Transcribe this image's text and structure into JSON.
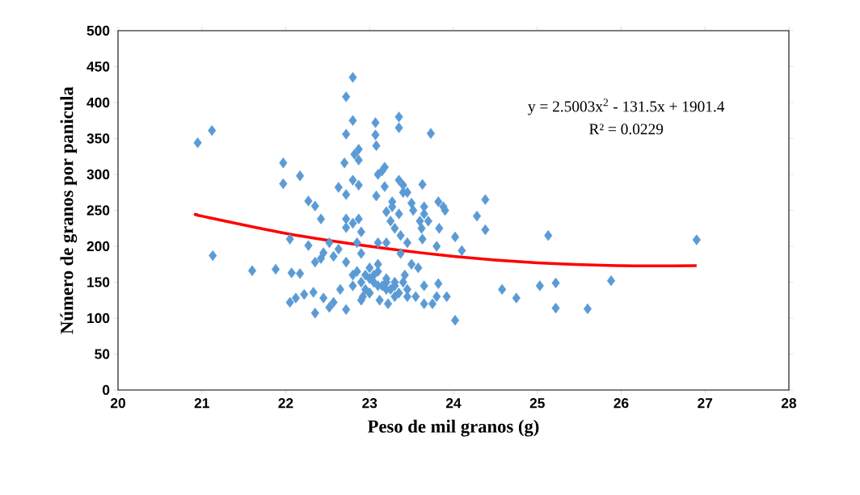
{
  "chart_data": {
    "type": "scatter",
    "xlabel": "Peso de mil granos (g)",
    "ylabel": "Número de granos por panicula",
    "xlim": [
      20,
      28
    ],
    "xticks": [
      20,
      21,
      22,
      23,
      24,
      25,
      26,
      27,
      28
    ],
    "ylim": [
      0,
      500
    ],
    "yticks": [
      0,
      50,
      100,
      150,
      200,
      250,
      300,
      350,
      400,
      450,
      500
    ],
    "marker": "diamond",
    "annotations": [
      "y = 2.5003x$^{2}$ - 131.5x + 1901.4",
      "R² = 0.0229"
    ],
    "series": [
      {
        "color": "#5b9bd5",
        "x": [
          20.95,
          21.12,
          21.13,
          21.6,
          21.88,
          21.97,
          21.97,
          22.05,
          22.07,
          22.05,
          22.12,
          22.17,
          22.17,
          22.22,
          22.27,
          22.27,
          22.35,
          22.33,
          22.35,
          22.35,
          22.42,
          22.42,
          22.45,
          22.45,
          22.52,
          22.52,
          22.57,
          22.57,
          22.63,
          22.63,
          22.65,
          22.7,
          22.72,
          22.72,
          22.72,
          22.72,
          22.72,
          22.72,
          22.72,
          22.8,
          22.8,
          22.8,
          22.82,
          22.8,
          22.8,
          22.8,
          22.85,
          22.87,
          22.87,
          22.87,
          22.87,
          22.9,
          22.9,
          22.9,
          22.92,
          22.95,
          23.0,
          23.0,
          23.0,
          23.05,
          23.07,
          23.07,
          23.08,
          23.08,
          23.1,
          23.1,
          23.1,
          23.1,
          23.12,
          23.15,
          23.18,
          23.18,
          23.2,
          23.2,
          23.2,
          23.2,
          23.22,
          23.25,
          23.27,
          23.27,
          23.3,
          23.3,
          23.3,
          23.35,
          23.35,
          23.35,
          23.35,
          23.37,
          23.37,
          23.4,
          23.4,
          23.42,
          23.45,
          23.45,
          23.45,
          23.5,
          23.5,
          23.52,
          23.55,
          23.58,
          23.6,
          23.62,
          23.63,
          23.65,
          23.65,
          23.63,
          23.65,
          23.65,
          23.7,
          23.73,
          23.75,
          23.8,
          23.8,
          23.82,
          23.82,
          23.83,
          23.88,
          23.9,
          23.92,
          24.02,
          24.02,
          24.1,
          24.28,
          24.38,
          24.38,
          24.58,
          24.75,
          25.03,
          25.13,
          25.22,
          25.22,
          25.6,
          25.88,
          26.9,
          22.85,
          22.95,
          23.05,
          23.15,
          23.25,
          23.35,
          23.45,
          22.9,
          23.0,
          23.1,
          23.2,
          23.3,
          23.4
        ],
        "values": [
          344,
          361,
          187,
          166,
          168,
          316,
          287,
          210,
          163,
          122,
          128,
          298,
          162,
          133,
          201,
          263,
          256,
          136,
          107,
          178,
          238,
          183,
          191,
          128,
          205,
          115,
          122,
          186,
          196,
          282,
          140,
          316,
          408,
          356,
          272,
          238,
          226,
          178,
          112,
          435,
          375,
          292,
          328,
          232,
          160,
          145,
          205,
          335,
          320,
          285,
          238,
          220,
          190,
          150,
          130,
          140,
          170,
          155,
          135,
          160,
          372,
          355,
          340,
          270,
          300,
          205,
          175,
          145,
          125,
          305,
          310,
          283,
          248,
          205,
          150,
          140,
          120,
          235,
          262,
          255,
          225,
          150,
          130,
          380,
          365,
          292,
          245,
          215,
          190,
          285,
          275,
          160,
          275,
          205,
          140,
          175,
          260,
          250,
          130,
          170,
          235,
          225,
          286,
          255,
          245,
          210,
          145,
          120,
          235,
          357,
          120,
          130,
          200,
          262,
          148,
          225,
          255,
          250,
          130,
          97,
          213,
          194,
          242,
          265,
          223,
          140,
          128,
          145,
          215,
          149,
          114,
          113,
          152,
          209,
          165,
          160,
          150,
          145,
          140,
          135,
          130,
          125,
          135,
          165,
          155,
          145,
          150
        ]
      },
      {
        "type": "line",
        "marker": "none",
        "color": "#ff0000",
        "x": [
          20.95,
          21,
          22,
          23,
          24,
          25,
          26,
          26.9
        ],
        "values": [
          244,
          242,
          218,
          200,
          186,
          177,
          173,
          173
        ]
      }
    ]
  }
}
